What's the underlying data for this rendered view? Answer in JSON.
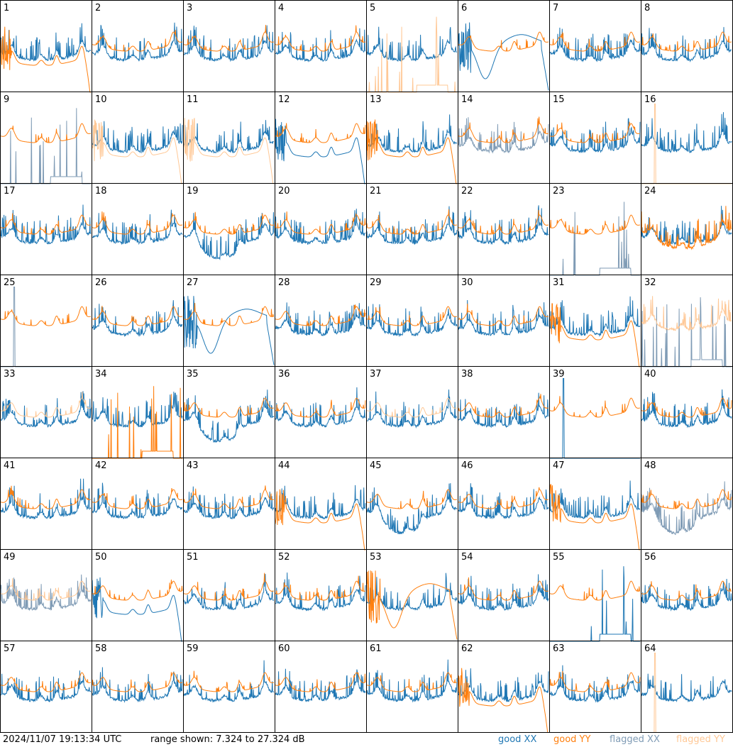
{
  "footer": {
    "timestamp": "2024/11/07 19:13:34 UTC",
    "range_text": "range shown: 7.324 to 27.324 dB"
  },
  "legend": [
    {
      "label": "good XX",
      "color": "#1f77b4"
    },
    {
      "label": "good YY",
      "color": "#ff7f0e"
    },
    {
      "label": "flagged XX",
      "color": "#7f9bb5"
    },
    {
      "label": "flagged YY",
      "color": "#ffc896"
    }
  ],
  "chart_data": {
    "type": "line",
    "grid": {
      "rows": 8,
      "cols": 8
    },
    "ylim_db": [
      7.324,
      27.324
    ],
    "panels": [
      {
        "label": "1",
        "xx": "good",
        "yy": "good",
        "xx_shape": "spiky",
        "yy_shape": "dropout_end"
      },
      {
        "label": "2",
        "xx": "good",
        "yy": "good",
        "xx_shape": "spiky",
        "yy_shape": "smooth"
      },
      {
        "label": "3",
        "xx": "good",
        "yy": "good",
        "xx_shape": "spiky",
        "yy_shape": "smooth"
      },
      {
        "label": "4",
        "xx": "good",
        "yy": "good",
        "xx_shape": "spiky",
        "yy_shape": "smooth"
      },
      {
        "label": "5",
        "xx": "good",
        "yy": "flagged",
        "xx_shape": "spiky",
        "yy_shape": "sparse_spikes"
      },
      {
        "label": "6",
        "xx": "good",
        "yy": "good",
        "xx_shape": "dip_hump",
        "yy_shape": "smooth"
      },
      {
        "label": "7",
        "xx": "good",
        "yy": "good",
        "xx_shape": "spiky",
        "yy_shape": "smooth"
      },
      {
        "label": "8",
        "xx": "good",
        "yy": "good",
        "xx_shape": "spiky",
        "yy_shape": "smooth"
      },
      {
        "label": "9",
        "xx": "flagged",
        "yy": "good",
        "xx_shape": "sparse_spikes",
        "yy_shape": "smooth"
      },
      {
        "label": "10",
        "xx": "good",
        "yy": "flagged",
        "xx_shape": "spiky",
        "yy_shape": "dropout_end"
      },
      {
        "label": "11",
        "xx": "good",
        "yy": "flagged",
        "xx_shape": "spiky",
        "yy_shape": "dropout_end"
      },
      {
        "label": "12",
        "xx": "good",
        "yy": "good",
        "xx_shape": "dropout_end",
        "yy_shape": "smooth"
      },
      {
        "label": "13",
        "xx": "good",
        "yy": "good",
        "xx_shape": "spiky",
        "yy_shape": "dropout_end"
      },
      {
        "label": "14",
        "xx": "flagged",
        "yy": "good",
        "xx_shape": "spiky",
        "yy_shape": "smooth"
      },
      {
        "label": "15",
        "xx": "good",
        "yy": "good",
        "xx_shape": "spiky",
        "yy_shape": "smooth"
      },
      {
        "label": "16",
        "xx": "good",
        "yy": "flagged",
        "xx_shape": "spiky",
        "yy_shape": "single_spike"
      },
      {
        "label": "17",
        "xx": "good",
        "yy": "good",
        "xx_shape": "spiky",
        "yy_shape": "smooth"
      },
      {
        "label": "18",
        "xx": "good",
        "yy": "good",
        "xx_shape": "spiky",
        "yy_shape": "smooth"
      },
      {
        "label": "19",
        "xx": "good",
        "yy": "good",
        "xx_shape": "deep_bowl",
        "yy_shape": "smooth"
      },
      {
        "label": "20",
        "xx": "good",
        "yy": "good",
        "xx_shape": "spiky",
        "yy_shape": "smooth"
      },
      {
        "label": "21",
        "xx": "good",
        "yy": "good",
        "xx_shape": "spiky",
        "yy_shape": "smooth"
      },
      {
        "label": "22",
        "xx": "good",
        "yy": "good",
        "xx_shape": "spiky",
        "yy_shape": "smooth"
      },
      {
        "label": "23",
        "xx": "flagged",
        "yy": "good",
        "xx_shape": "sparse_spikes",
        "yy_shape": "smooth"
      },
      {
        "label": "24",
        "xx": "good",
        "yy": "good",
        "xx_shape": "spiky",
        "yy_shape": "low_bowl"
      },
      {
        "label": "25",
        "xx": "flagged",
        "yy": "good",
        "xx_shape": "single_spike",
        "yy_shape": "smooth"
      },
      {
        "label": "26",
        "xx": "good",
        "yy": "good",
        "xx_shape": "spiky",
        "yy_shape": "smooth"
      },
      {
        "label": "27",
        "xx": "good",
        "yy": "good",
        "xx_shape": "dip_hump",
        "yy_shape": "smooth"
      },
      {
        "label": "28",
        "xx": "good",
        "yy": "good",
        "xx_shape": "spiky",
        "yy_shape": "smooth"
      },
      {
        "label": "29",
        "xx": "good",
        "yy": "good",
        "xx_shape": "spiky",
        "yy_shape": "smooth"
      },
      {
        "label": "30",
        "xx": "good",
        "yy": "good",
        "xx_shape": "spiky",
        "yy_shape": "smooth"
      },
      {
        "label": "31",
        "xx": "good",
        "yy": "good",
        "xx_shape": "spiky",
        "yy_shape": "dropout_end"
      },
      {
        "label": "32",
        "xx": "flagged",
        "yy": "flagged",
        "xx_shape": "sparse_spikes",
        "yy_shape": "spiky"
      },
      {
        "label": "33",
        "xx": "good",
        "yy": "flagged",
        "xx_shape": "spiky",
        "yy_shape": "smooth"
      },
      {
        "label": "34",
        "xx": "good",
        "yy": "good",
        "xx_shape": "spiky",
        "yy_shape": "sparse_spikes"
      },
      {
        "label": "35",
        "xx": "good",
        "yy": "good",
        "xx_shape": "deep_bowl",
        "yy_shape": "smooth"
      },
      {
        "label": "36",
        "xx": "good",
        "yy": "good",
        "xx_shape": "spiky",
        "yy_shape": "smooth"
      },
      {
        "label": "37",
        "xx": "good",
        "yy": "flagged",
        "xx_shape": "spiky",
        "yy_shape": "smooth"
      },
      {
        "label": "38",
        "xx": "good",
        "yy": "good",
        "xx_shape": "spiky",
        "yy_shape": "smooth"
      },
      {
        "label": "39",
        "xx": "good",
        "yy": "good",
        "xx_shape": "single_spike",
        "yy_shape": "smooth"
      },
      {
        "label": "40",
        "xx": "good",
        "yy": "good",
        "xx_shape": "spiky",
        "yy_shape": "smooth"
      },
      {
        "label": "41",
        "xx": "good",
        "yy": "good",
        "xx_shape": "spiky",
        "yy_shape": "smooth"
      },
      {
        "label": "42",
        "xx": "good",
        "yy": "good",
        "xx_shape": "spiky",
        "yy_shape": "smooth"
      },
      {
        "label": "43",
        "xx": "good",
        "yy": "good",
        "xx_shape": "spiky",
        "yy_shape": "smooth"
      },
      {
        "label": "44",
        "xx": "good",
        "yy": "good",
        "xx_shape": "spiky",
        "yy_shape": "dropout_end"
      },
      {
        "label": "45",
        "xx": "good",
        "yy": "good",
        "xx_shape": "deep_bowl",
        "yy_shape": "smooth"
      },
      {
        "label": "46",
        "xx": "good",
        "yy": "good",
        "xx_shape": "spiky",
        "yy_shape": "smooth"
      },
      {
        "label": "47",
        "xx": "good",
        "yy": "good",
        "xx_shape": "spiky",
        "yy_shape": "dropout_end"
      },
      {
        "label": "48",
        "xx": "flagged",
        "yy": "good",
        "xx_shape": "deep_bowl",
        "yy_shape": "smooth"
      },
      {
        "label": "49",
        "xx": "flagged",
        "yy": "flagged",
        "xx_shape": "spiky",
        "yy_shape": "smooth"
      },
      {
        "label": "50",
        "xx": "good",
        "yy": "good",
        "xx_shape": "dropout_end",
        "yy_shape": "smooth"
      },
      {
        "label": "51",
        "xx": "good",
        "yy": "good",
        "xx_shape": "spiky",
        "yy_shape": "smooth"
      },
      {
        "label": "52",
        "xx": "good",
        "yy": "good",
        "xx_shape": "spiky",
        "yy_shape": "smooth"
      },
      {
        "label": "53",
        "xx": "good",
        "yy": "good",
        "xx_shape": "spiky",
        "yy_shape": "dip_hump"
      },
      {
        "label": "54",
        "xx": "good",
        "yy": "good",
        "xx_shape": "spiky",
        "yy_shape": "smooth"
      },
      {
        "label": "55",
        "xx": "good",
        "yy": "good",
        "xx_shape": "sparse_spikes",
        "yy_shape": "smooth"
      },
      {
        "label": "56",
        "xx": "good",
        "yy": "good",
        "xx_shape": "spiky",
        "yy_shape": "smooth"
      },
      {
        "label": "57",
        "xx": "good",
        "yy": "good",
        "xx_shape": "spiky",
        "yy_shape": "smooth"
      },
      {
        "label": "58",
        "xx": "good",
        "yy": "good",
        "xx_shape": "spiky",
        "yy_shape": "smooth"
      },
      {
        "label": "59",
        "xx": "good",
        "yy": "good",
        "xx_shape": "spiky",
        "yy_shape": "smooth"
      },
      {
        "label": "60",
        "xx": "good",
        "yy": "good",
        "xx_shape": "spiky",
        "yy_shape": "smooth"
      },
      {
        "label": "61",
        "xx": "good",
        "yy": "good",
        "xx_shape": "spiky",
        "yy_shape": "smooth"
      },
      {
        "label": "62",
        "xx": "good",
        "yy": "good",
        "xx_shape": "spiky",
        "yy_shape": "dropout_end"
      },
      {
        "label": "63",
        "xx": "good",
        "yy": "good",
        "xx_shape": "spiky",
        "yy_shape": "smooth"
      },
      {
        "label": "64",
        "xx": "good",
        "yy": "flagged",
        "xx_shape": "spiky",
        "yy_shape": "single_spike"
      }
    ]
  }
}
